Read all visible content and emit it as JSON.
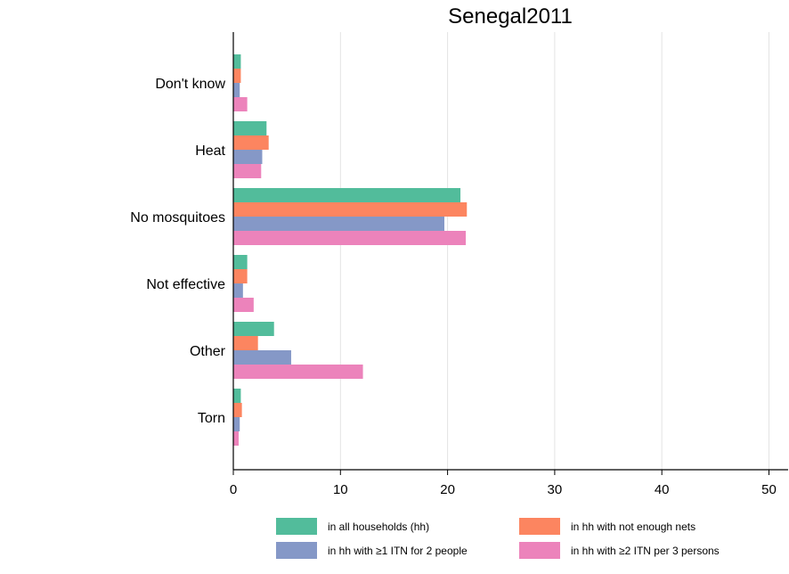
{
  "chart_data": {
    "type": "bar",
    "orientation": "horizontal",
    "title": "Senegal2011",
    "xlabel": "",
    "ylabel": "",
    "xlim": [
      0,
      52
    ],
    "xticks": [
      "0",
      "10",
      "20",
      "30",
      "40",
      "50"
    ],
    "grid": "vertical",
    "legend_position": "bottom",
    "categories": [
      "Don't know",
      "Heat",
      "No mosquitoes",
      "Not effective",
      "Other",
      "Torn"
    ],
    "series": [
      {
        "name": "in all households (hh)",
        "color": "#52bc9b",
        "values": [
          0.7,
          3.1,
          21.2,
          1.3,
          3.8,
          0.7
        ]
      },
      {
        "name": "in hh with not enough nets",
        "color": "#fc8560",
        "values": [
          0.7,
          3.3,
          21.8,
          1.3,
          2.3,
          0.8
        ]
      },
      {
        "name": "in hh with ≥1 ITN for 2 people",
        "color": "#8598c7",
        "values": [
          0.6,
          2.7,
          19.7,
          0.9,
          5.4,
          0.6
        ]
      },
      {
        "name": "in hh with ≥2 ITN per 3 persons",
        "color": "#ec83bb",
        "values": [
          1.3,
          2.6,
          21.7,
          1.9,
          12.1,
          0.5
        ]
      }
    ]
  }
}
